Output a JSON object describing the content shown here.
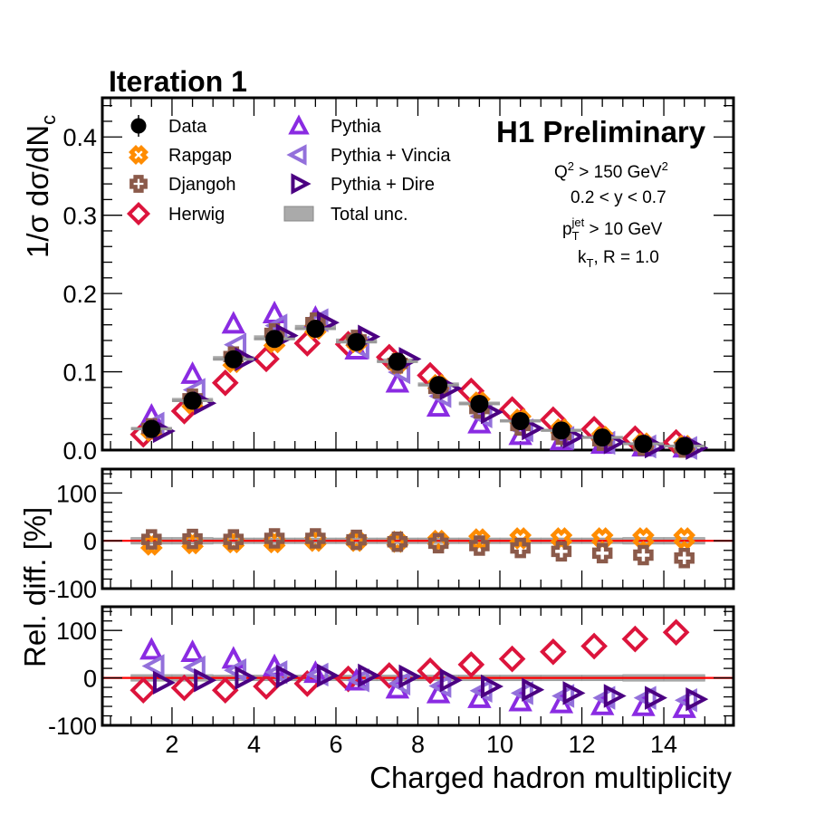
{
  "chart_data": {
    "type": "scatter",
    "title": "Iteration 1",
    "experiment_label": "H1 Preliminary",
    "cuts": [
      "Q^2 > 150 GeV^2",
      "0.2 < y < 0.7",
      "p_T^jet > 10 GeV",
      "k_T, R = 1.0"
    ],
    "cut_parts": {
      "q2": {
        "base": "Q",
        "sup": "2",
        "rest": " > 150 GeV",
        "sup2": "2"
      },
      "y": "0.2 < y < 0.7",
      "pt": {
        "base": "p",
        "sub": "T",
        "sup": "jet",
        "rest": " > 10 GeV"
      },
      "kt": {
        "base": "k",
        "sub": "T",
        "rest": ", R = 1.0"
      }
    },
    "xlabel": "Charged hadron multiplicity",
    "ylabel_top": "1/σ dσ/dN",
    "ylabel_top_sub": "c",
    "ylabel_ratio": "Rel. diff. [%]",
    "xlim": [
      0.3,
      15.7
    ],
    "x_ticks": [
      2,
      4,
      6,
      8,
      10,
      12,
      14
    ],
    "x_tick_labels": [
      "2",
      "4",
      "6",
      "8",
      "10",
      "12",
      "14"
    ],
    "x": [
      1.5,
      2.5,
      3.5,
      4.5,
      5.5,
      6.5,
      7.5,
      8.5,
      9.5,
      10.5,
      11.5,
      12.5,
      13.5,
      14.5
    ],
    "panels": {
      "top": {
        "ylim": [
          0.0,
          0.45
        ],
        "y_ticks": [
          0.0,
          0.1,
          0.2,
          0.3,
          0.4
        ],
        "y_tick_labels": [
          "0.0",
          "0.1",
          "0.2",
          "0.3",
          "0.4"
        ]
      },
      "middle": {
        "ylim": [
          -100,
          150
        ],
        "y_ticks": [
          -100,
          0,
          100
        ],
        "y_tick_labels": [
          "-100",
          "0",
          "100"
        ]
      },
      "bottom": {
        "ylim": [
          -100,
          150
        ],
        "y_ticks": [
          -100,
          0,
          100
        ],
        "y_tick_labels": [
          "-100",
          "0",
          "100"
        ]
      }
    },
    "data": {
      "name": "Data",
      "values": [
        0.027,
        0.063,
        0.116,
        0.142,
        0.155,
        0.138,
        0.113,
        0.083,
        0.059,
        0.037,
        0.025,
        0.016,
        0.008,
        0.005
      ]
    },
    "total_unc_percent": [
      3,
      3,
      2,
      2,
      2,
      2,
      2,
      2,
      2,
      2,
      2,
      2,
      3,
      3
    ],
    "series": [
      {
        "name": "Rapgap",
        "key": "rapgap",
        "color": "#ff8c00",
        "marker": "cross-x",
        "panel": "middle",
        "offset": 0.0,
        "rel_diff": [
          -8,
          -5,
          -3,
          -3,
          0,
          0,
          -2,
          0,
          3,
          5,
          5,
          5,
          5,
          5
        ]
      },
      {
        "name": "Djangoh",
        "key": "djangoh",
        "color": "#8b5a4a",
        "marker": "cross-plus",
        "panel": "middle",
        "offset": 0.0,
        "rel_diff": [
          3,
          4,
          3,
          5,
          5,
          2,
          -2,
          -5,
          -10,
          -15,
          -22,
          -26,
          -30,
          -36
        ]
      },
      {
        "name": "Herwig",
        "key": "herwig",
        "color": "#dc143c",
        "marker": "diamond",
        "panel": "bottom",
        "offset": -0.2,
        "rel_diff": [
          -26,
          -21,
          -26,
          -18,
          -12,
          -2,
          5,
          15,
          28,
          40,
          55,
          67,
          82,
          96
        ]
      },
      {
        "name": "Pythia",
        "key": "pythia",
        "color": "#8a2be2",
        "marker": "triangle-up",
        "panel": "bottom",
        "offset": 0.0,
        "rel_diff": [
          57,
          52,
          38,
          22,
          8,
          -8,
          -25,
          -35,
          -45,
          -52,
          -56,
          -60,
          -62,
          -66
        ]
      },
      {
        "name": "Pythia + Vincia",
        "key": "vincia",
        "color": "#9370db",
        "marker": "triangle-left",
        "panel": "bottom",
        "offset": 0.1,
        "rel_diff": [
          25,
          22,
          16,
          12,
          7,
          -5,
          -12,
          -17,
          -27,
          -32,
          -38,
          -42,
          -42,
          -47
        ]
      },
      {
        "name": "Pythia + Dire",
        "key": "dire",
        "color": "#4b0082",
        "marker": "triangle-right",
        "panel": "bottom",
        "offset": 0.25,
        "rel_diff": [
          -10,
          -5,
          0,
          3,
          5,
          5,
          3,
          -5,
          -18,
          -25,
          -32,
          -38,
          -42,
          -45
        ]
      }
    ],
    "legend": {
      "placement": "top-left",
      "entries": [
        {
          "label": "Data",
          "marker": "circle",
          "color": "#000000"
        },
        {
          "label": "Rapgap",
          "marker": "cross-x",
          "color": "#ff8c00"
        },
        {
          "label": "Djangoh",
          "marker": "cross-plus",
          "color": "#8b5a4a"
        },
        {
          "label": "Herwig",
          "marker": "diamond",
          "color": "#dc143c"
        },
        {
          "label": "Pythia",
          "marker": "triangle-up",
          "color": "#8a2be2"
        },
        {
          "label": "Pythia + Vincia",
          "marker": "triangle-left",
          "color": "#9370db"
        },
        {
          "label": "Pythia + Dire",
          "marker": "triangle-right",
          "color": "#4b0082"
        },
        {
          "label": "Total unc.",
          "marker": "box",
          "color": "#aaaaaa"
        }
      ]
    },
    "reference_line_color": "#ff0000",
    "unc_color": "#aaaaaa"
  }
}
